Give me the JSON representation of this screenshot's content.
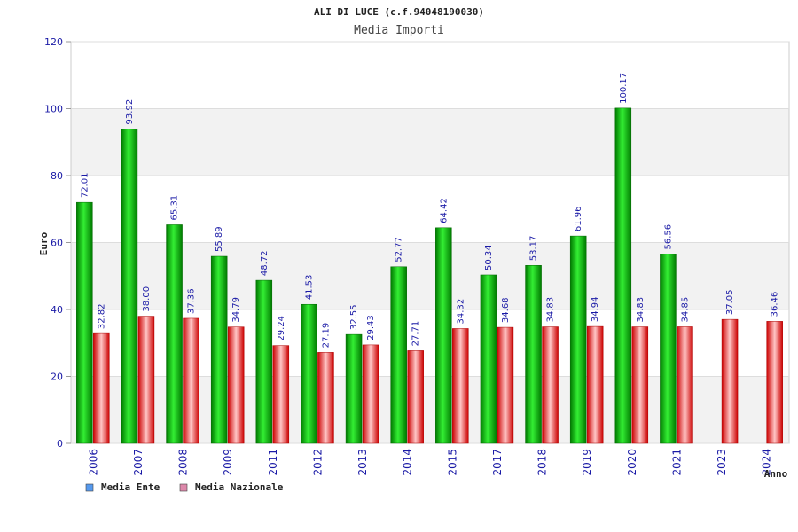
{
  "chart_data": {
    "type": "bar",
    "title": "ALI DI LUCE (c.f.94048190030)",
    "subtitle": "Media Importi",
    "xlabel": "Anno",
    "ylabel": "Euro",
    "ylim": [
      0,
      120
    ],
    "yticks": [
      "0",
      "20",
      "40",
      "60",
      "80",
      "100",
      "120"
    ],
    "grid": true,
    "legend_position": "bottom-left",
    "categories": [
      "2006",
      "2007",
      "2008",
      "2009",
      "2011",
      "2012",
      "2013",
      "2014",
      "2015",
      "2017",
      "2018",
      "2019",
      "2020",
      "2021",
      "2023",
      "2024"
    ],
    "series": [
      {
        "name": "Media Ente",
        "color": "#00bb00",
        "legend_color": "#5599ee",
        "values": [
          72.01,
          93.92,
          65.31,
          55.89,
          48.72,
          41.53,
          32.55,
          52.77,
          64.42,
          50.34,
          53.17,
          61.96,
          100.17,
          56.56,
          null,
          null
        ],
        "labels": [
          "72.01",
          "93.92",
          "65.31",
          "55.89",
          "48.72",
          "41.53",
          "32.55",
          "52.77",
          "64.42",
          "50.34",
          "53.17",
          "61.96",
          "100.17",
          "56.56",
          "",
          ""
        ]
      },
      {
        "name": "Media Nazionale",
        "color": "#ee2222",
        "legend_color": "#dd88aa",
        "values": [
          32.82,
          38.0,
          37.36,
          34.79,
          29.24,
          27.19,
          29.43,
          27.71,
          34.32,
          34.68,
          34.83,
          34.94,
          34.83,
          34.85,
          37.05,
          36.46
        ],
        "labels": [
          "32.82",
          "38.00",
          "37.36",
          "34.79",
          "29.24",
          "27.19",
          "29.43",
          "27.71",
          "34.32",
          "34.68",
          "34.83",
          "34.94",
          "34.83",
          "34.85",
          "37.05",
          "36.46"
        ]
      }
    ]
  }
}
